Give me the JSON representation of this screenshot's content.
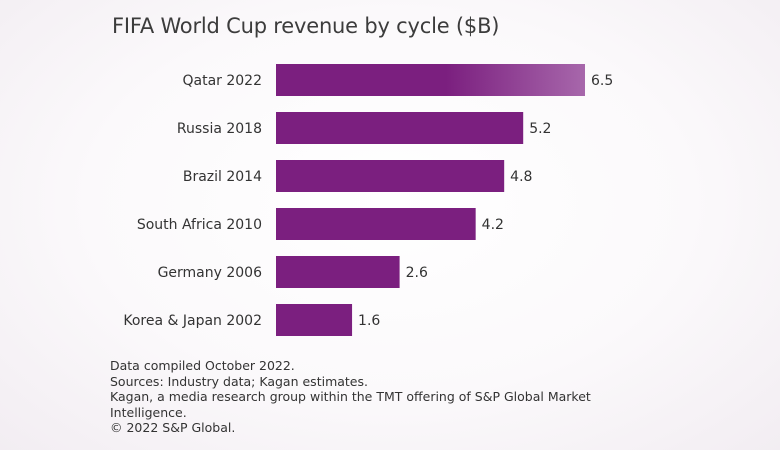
{
  "chart_data": {
    "type": "bar",
    "orientation": "horizontal",
    "title": "FIFA World Cup revenue by cycle ($B)",
    "categories": [
      "Qatar 2022",
      "Russia 2018",
      "Brazil 2014",
      "South Africa 2010",
      "Germany 2006",
      "Korea & Japan 2002"
    ],
    "values": [
      6.5,
      5.2,
      4.8,
      4.2,
      2.6,
      1.6
    ],
    "value_labels": [
      "6.5",
      "5.2",
      "4.8",
      "4.2",
      "2.6",
      "1.6"
    ],
    "xlim": [
      0,
      6.5
    ],
    "grid": false,
    "legend": "none",
    "bar_color": "#7b1f7f",
    "highlight_color": "#a767ab"
  },
  "footnotes": {
    "line1": "Data compiled October 2022.",
    "line2": "Sources: Industry data; Kagan estimates.",
    "line3": "Kagan, a media research group within the TMT offering of S&P Global Market Intelligence.",
    "line4": "© 2022 S&P Global."
  }
}
